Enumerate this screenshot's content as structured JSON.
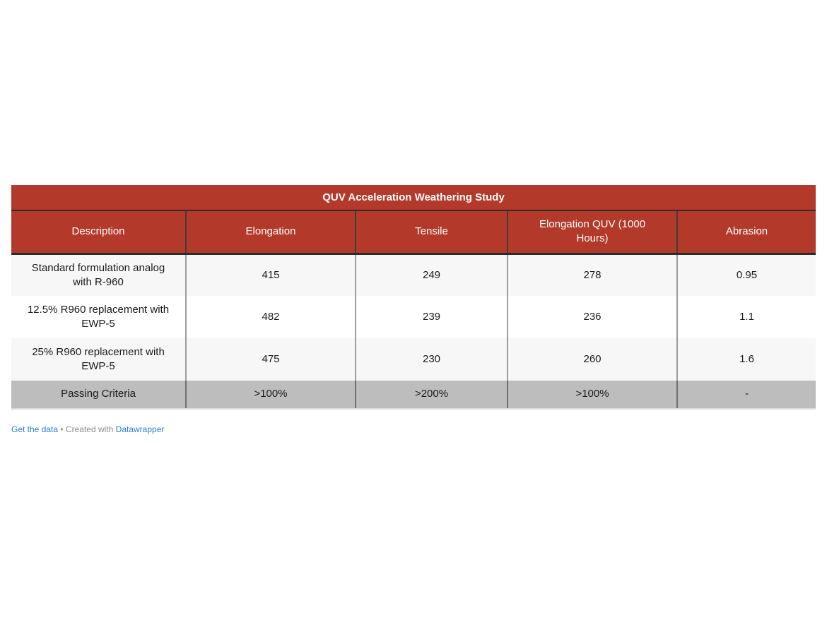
{
  "table": {
    "title": "QUV Acceleration Weathering Study",
    "columns": [
      {
        "key": "description",
        "label": "Description"
      },
      {
        "key": "elongation",
        "label": "Elongation"
      },
      {
        "key": "tensile",
        "label": "Tensile"
      },
      {
        "key": "elongation-quv",
        "label": "Elongation QUV (1000 Hours)"
      },
      {
        "key": "abrasion",
        "label": "Abrasion"
      }
    ],
    "rows": [
      {
        "type": "data",
        "label": "Standard formulation analog with R-960",
        "values": [
          "415",
          "249",
          "278",
          "0.95"
        ]
      },
      {
        "type": "data",
        "label": "12.5% R960 replacement with EWP-5",
        "values": [
          "482",
          "239",
          "236",
          "1.1"
        ]
      },
      {
        "type": "data",
        "label": "25% R960 replacement with EWP-5",
        "values": [
          "475",
          "230",
          "260",
          "1.6"
        ]
      },
      {
        "type": "criteria",
        "label": "Passing Criteria",
        "values": [
          ">100%",
          ">200%",
          ">100%",
          "-"
        ]
      }
    ]
  },
  "footer": {
    "get_data_label": "Get the data",
    "separator": "•",
    "created_with_label": "Created with",
    "datawrapper_label": "Datawrapper"
  },
  "colors": {
    "header_red": "#b33a2b",
    "dark_rule": "#2b2b2b",
    "body_rule": "#9c9c9c",
    "stripe": "#f7f7f7",
    "criteria_bg": "#bdbdbd",
    "body_text": "#1a1a1a",
    "link_blue": "#2a7dd2",
    "footer_gray": "#8c8c8c"
  },
  "chart_data": {
    "type": "table",
    "title": "QUV Acceleration Weathering Study",
    "columns": [
      "Description",
      "Elongation",
      "Tensile",
      "Elongation QUV (1000 Hours)",
      "Abrasion"
    ],
    "rows": [
      [
        "Standard formulation analog with R-960",
        415,
        249,
        278,
        0.95
      ],
      [
        "12.5% R960 replacement with EWP-5",
        482,
        239,
        236,
        1.1
      ],
      [
        "25% R960 replacement with EWP-5",
        475,
        230,
        260,
        1.6
      ],
      [
        "Passing Criteria",
        ">100%",
        ">200%",
        ">100%",
        "-"
      ]
    ],
    "layout_hints": {
      "title_bar": "red banner centered bold white",
      "header_row": "red background white text",
      "zebra_stripes": true,
      "last_row_highlight": "gray passing-criteria row",
      "footer": "Get the data • Created with Datawrapper"
    }
  }
}
